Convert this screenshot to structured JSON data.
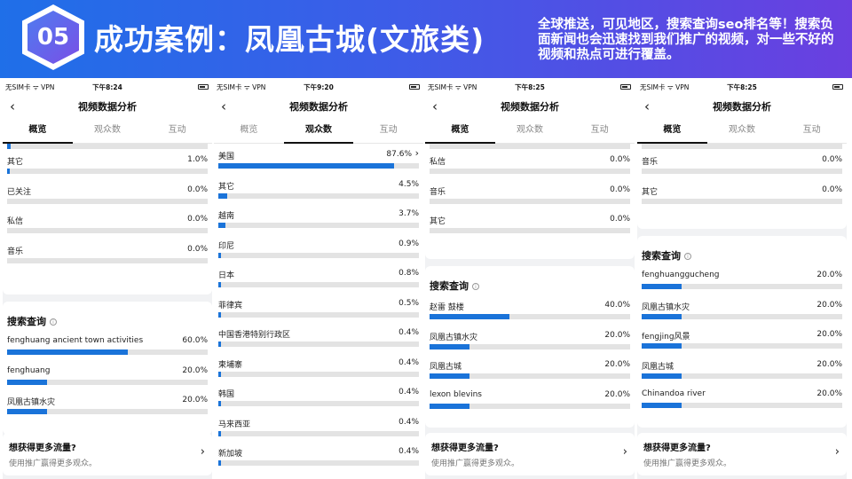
{
  "header": {
    "badge": "05",
    "title": "成功案例：凤凰古城(文旅类)",
    "description": "全球推送，可见地区，搜索查询seo排名等！搜索负面新闻也会迅速找到我们推广的视频，对一些不好的视频和热点可进行覆盖。",
    "accent_color": "#2f6ae8"
  },
  "common": {
    "page_title": "视频数据分析",
    "tabs": [
      "概览",
      "观众数",
      "互动"
    ],
    "search_title": "搜索查询",
    "promo_title": "想获得更多流量?",
    "promo_sub": "使用推广赢得更多观众。",
    "wifi": "ᯤ",
    "vpn": "VPN"
  },
  "phone1": {
    "carrier": "无SIM卡",
    "time": "下午8:24",
    "sources": [
      {
        "label": "其它",
        "pct": "1.0%",
        "value": 1
      },
      {
        "label": "已关注",
        "pct": "0.0%",
        "value": 0
      },
      {
        "label": "私信",
        "pct": "0.0%",
        "value": 0
      },
      {
        "label": "音乐",
        "pct": "0.0%",
        "value": 0
      }
    ],
    "search": [
      {
        "label": "fenghuang ancient town activities",
        "pct": "60.0%",
        "value": 60
      },
      {
        "label": "fenghuang",
        "pct": "20.0%",
        "value": 20
      },
      {
        "label": "凤凰古镇水灾",
        "pct": "20.0%",
        "value": 20
      }
    ]
  },
  "phone2": {
    "carrier": "无SIM卡",
    "time": "下午9:20",
    "regions": [
      {
        "label": "美国",
        "pct": "87.6%",
        "value": 87.6
      },
      {
        "label": "其它",
        "pct": "4.5%",
        "value": 4.5
      },
      {
        "label": "越南",
        "pct": "3.7%",
        "value": 3.7
      },
      {
        "label": "印尼",
        "pct": "0.9%",
        "value": 0.9
      },
      {
        "label": "日本",
        "pct": "0.8%",
        "value": 0.8
      },
      {
        "label": "菲律宾",
        "pct": "0.5%",
        "value": 0.5
      },
      {
        "label": "中国香港特别行政区",
        "pct": "0.4%",
        "value": 0.4
      },
      {
        "label": "柬埔寨",
        "pct": "0.4%",
        "value": 0.4
      },
      {
        "label": "韩国",
        "pct": "0.4%",
        "value": 0.4
      },
      {
        "label": "马来西亚",
        "pct": "0.4%",
        "value": 0.4
      },
      {
        "label": "新加坡",
        "pct": "0.4%",
        "value": 0.4
      }
    ]
  },
  "phone3": {
    "carrier": "无SIM卡",
    "time": "下午8:25",
    "sources": [
      {
        "label": "私信",
        "pct": "0.0%",
        "value": 0
      },
      {
        "label": "音乐",
        "pct": "0.0%",
        "value": 0
      },
      {
        "label": "其它",
        "pct": "0.0%",
        "value": 0
      }
    ],
    "search": [
      {
        "label": "赵雷 鼓楼",
        "pct": "40.0%",
        "value": 40
      },
      {
        "label": "凤凰古镇水灾",
        "pct": "20.0%",
        "value": 20
      },
      {
        "label": "凤凰古城",
        "pct": "20.0%",
        "value": 20
      },
      {
        "label": "lexon blevins",
        "pct": "20.0%",
        "value": 20
      }
    ]
  },
  "phone4": {
    "carrier": "无SIM卡",
    "time": "下午8:25",
    "sources": [
      {
        "label": "音乐",
        "pct": "0.0%",
        "value": 0
      },
      {
        "label": "其它",
        "pct": "0.0%",
        "value": 0
      }
    ],
    "search": [
      {
        "label": "fenghuanggucheng",
        "pct": "20.0%",
        "value": 20
      },
      {
        "label": "凤凰古镇水灾",
        "pct": "20.0%",
        "value": 20
      },
      {
        "label": "fengjing风景",
        "pct": "20.0%",
        "value": 20
      },
      {
        "label": "凤凰古城",
        "pct": "20.0%",
        "value": 20
      },
      {
        "label": "Chinandoa river",
        "pct": "20.0%",
        "value": 20
      }
    ]
  }
}
